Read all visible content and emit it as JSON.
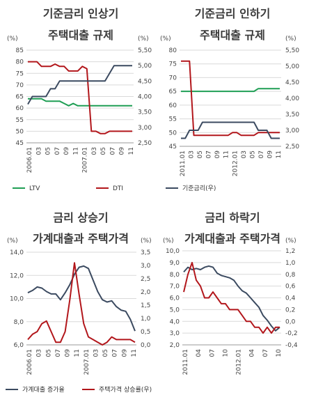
{
  "colors": {
    "green": "#1f9e54",
    "red": "#b2161b",
    "navy": "#3b4a60",
    "grid": "#d9d9d9"
  },
  "chart_data": [
    {
      "id": "p1",
      "type": "line",
      "title_lines": [
        "기준금리 인상기",
        "주택대출 규제"
      ],
      "left_unit": "(%)",
      "right_unit": "(%)",
      "left_axis": {
        "min": 45,
        "max": 85,
        "ticks": [
          "45",
          "50",
          "55",
          "60",
          "65",
          "70",
          "75",
          "80",
          "85"
        ]
      },
      "right_axis": {
        "min": 2.5,
        "max": 5.5,
        "ticks": [
          "2,50",
          "3,00",
          "3,50",
          "4,00",
          "4,50",
          "5,00",
          "5,50"
        ]
      },
      "x_labels": [
        "2006.01",
        "03",
        "05",
        "07",
        "09",
        "11",
        "2007.01",
        "03",
        "05",
        "07",
        "09",
        "11"
      ],
      "x_count": 24,
      "series": [
        {
          "name": "LTV",
          "axis": "left",
          "color": "#1f9e54",
          "values": [
            64,
            64,
            64,
            64,
            63,
            63,
            63,
            63,
            62,
            61,
            62,
            61,
            61,
            61,
            61,
            61,
            61,
            61,
            61,
            61,
            61,
            61,
            61,
            61
          ]
        },
        {
          "name": "DTI",
          "axis": "left",
          "color": "#b2161b",
          "values": [
            80,
            80,
            80,
            78,
            78,
            78,
            79,
            78,
            78,
            76,
            76,
            76,
            78,
            77,
            50,
            50,
            49,
            49,
            50,
            50,
            50,
            50,
            50,
            50
          ]
        },
        {
          "name": "기준금리(우)",
          "axis": "right",
          "color": "#3b4a60",
          "values": [
            3.75,
            4.0,
            4.0,
            4.0,
            4.0,
            4.25,
            4.25,
            4.5,
            4.5,
            4.5,
            4.5,
            4.5,
            4.5,
            4.5,
            4.5,
            4.5,
            4.5,
            4.5,
            4.75,
            5.0,
            5.0,
            5.0,
            5.0,
            5.0
          ]
        }
      ]
    },
    {
      "id": "p2",
      "type": "line",
      "title_lines": [
        "기준금리 인하기",
        "주택대출 규제"
      ],
      "left_unit": "(%)",
      "right_unit": "(%)",
      "left_axis": {
        "min": 45,
        "max": 80,
        "ticks": [
          "45",
          "50",
          "55",
          "60",
          "65",
          "70",
          "75",
          "80"
        ]
      },
      "right_axis": {
        "min": 2.5,
        "max": 5.5,
        "ticks": [
          "2,50",
          "3,00",
          "3,50",
          "4,00",
          "4,50",
          "5,00",
          "5,50"
        ]
      },
      "x_labels": [
        "2011.01",
        "03",
        "05",
        "07",
        "09",
        "11",
        "2012.01",
        "03",
        "05",
        "07",
        "09",
        "11"
      ],
      "x_count": 24,
      "series": [
        {
          "name": "LTV",
          "axis": "left",
          "color": "#1f9e54",
          "values": [
            65,
            65,
            65,
            65,
            65,
            65,
            65,
            65,
            65,
            65,
            65,
            65,
            65,
            65,
            65,
            65,
            65,
            65,
            66,
            66,
            66,
            66,
            66,
            66
          ]
        },
        {
          "name": "DTI",
          "axis": "left",
          "color": "#b2161b",
          "values": [
            76,
            76,
            76,
            49,
            49,
            49,
            49,
            49,
            49,
            49,
            49,
            49,
            50,
            50,
            49,
            49,
            49,
            49,
            50,
            50,
            50,
            50,
            50,
            50
          ]
        },
        {
          "name": "기준금리(우)",
          "axis": "right",
          "color": "#3b4a60",
          "values": [
            2.75,
            2.75,
            3.0,
            3.0,
            3.0,
            3.25,
            3.25,
            3.25,
            3.25,
            3.25,
            3.25,
            3.25,
            3.25,
            3.25,
            3.25,
            3.25,
            3.25,
            3.25,
            3.0,
            3.0,
            3.0,
            2.75,
            2.75,
            2.75
          ]
        }
      ]
    },
    {
      "id": "p3",
      "type": "line",
      "title_lines": [
        "금리 상승기",
        "가계대출과 주택가격"
      ],
      "left_unit": "(%)",
      "right_unit": "(%)",
      "left_axis": {
        "min": 6,
        "max": 14,
        "ticks": [
          "6,0",
          "8,0",
          "10,0",
          "12,0",
          "14,0"
        ]
      },
      "right_axis": {
        "min": 0,
        "max": 3.5,
        "ticks": [
          "0,0",
          "0,5",
          "1,0",
          "1,5",
          "2,0",
          "2,5",
          "3,0",
          "3,5"
        ]
      },
      "x_labels": [
        "2006.01",
        "03",
        "05",
        "07",
        "09",
        "11",
        "2007.01",
        "03",
        "05",
        "07",
        "09",
        "11"
      ],
      "x_count": 24,
      "series": [
        {
          "name": "가계대출 증가율",
          "axis": "left",
          "color": "#3b4a60",
          "values": [
            10.5,
            10.7,
            11.0,
            10.9,
            10.6,
            10.4,
            10.4,
            9.9,
            10.5,
            11.2,
            12.1,
            12.7,
            12.8,
            12.6,
            11.6,
            10.6,
            9.9,
            9.7,
            9.8,
            9.3,
            9.0,
            8.9,
            8.2,
            7.2
          ]
        },
        {
          "name": "주택가격 상승률(우)",
          "axis": "right",
          "color": "#b2161b",
          "values": [
            0.2,
            0.4,
            0.5,
            0.8,
            0.9,
            0.5,
            0.1,
            0.1,
            0.5,
            1.7,
            3.1,
            1.9,
            0.8,
            0.3,
            0.2,
            0.1,
            0.0,
            0.1,
            0.3,
            0.2,
            0.2,
            0.2,
            0.2,
            0.1
          ]
        }
      ]
    },
    {
      "id": "p4",
      "type": "line",
      "title_lines": [
        "금리 하락기",
        "가계대출과 주택가격"
      ],
      "left_unit": "(%)",
      "right_unit": "(%)",
      "left_axis": {
        "min": 2.0,
        "max": 10.0,
        "ticks": [
          "2,0",
          "3,0",
          "4,0",
          "5,0",
          "6,0",
          "7,0",
          "8,0",
          "9,0",
          "10,0"
        ]
      },
      "right_axis": {
        "min": -0.4,
        "max": 1.2,
        "ticks": [
          "-0,4",
          "-0,2",
          "0,0",
          "0,2",
          "0,4",
          "0,6",
          "0,8",
          "1,0",
          "1,2"
        ]
      },
      "x_labels": [
        "2011.01",
        "04",
        "07",
        "10",
        "2012.01",
        "04",
        "07",
        "10"
      ],
      "x_count": 24,
      "series": [
        {
          "name": "가계대출 증가율",
          "axis": "left",
          "color": "#3b4a60",
          "values": [
            8.2,
            8.6,
            8.4,
            8.5,
            8.4,
            8.6,
            8.7,
            8.6,
            8.1,
            7.9,
            7.8,
            7.7,
            7.5,
            7.0,
            6.6,
            6.4,
            6.0,
            5.6,
            5.2,
            4.5,
            4.1,
            3.6,
            3.2,
            3.5
          ]
        },
        {
          "name": "주택가격 상승률(우)",
          "axis": "right",
          "color": "#b2161b",
          "values": [
            0.5,
            0.8,
            1.0,
            0.7,
            0.6,
            0.4,
            0.4,
            0.5,
            0.4,
            0.3,
            0.3,
            0.2,
            0.2,
            0.2,
            0.1,
            0.0,
            0.0,
            -0.1,
            -0.1,
            -0.2,
            -0.1,
            -0.2,
            -0.1,
            -0.1
          ]
        }
      ]
    }
  ],
  "legends": {
    "top": [
      "LTV",
      "DTI",
      "기준금리(우)"
    ],
    "bottom": [
      "가계대출 증가율",
      "주택가격 상승률(우)"
    ]
  }
}
